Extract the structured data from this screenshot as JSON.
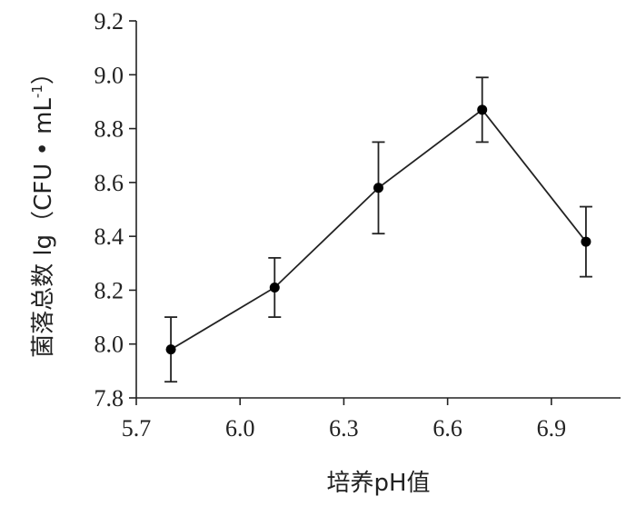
{
  "chart_data": {
    "type": "line",
    "xlabel": "培养pH值",
    "ylabel": "菌落总数 lg（CFU • mL",
    "ylabel_sup": "-1",
    "ylabel_close": "）",
    "xlim": [
      5.7,
      7.1
    ],
    "ylim": [
      7.8,
      9.2
    ],
    "xticks": [
      "5.7",
      "6.0",
      "6.3",
      "6.6",
      "6.9"
    ],
    "yticks": [
      "7.8",
      "8.0",
      "8.2",
      "8.4",
      "8.6",
      "8.8",
      "9.0",
      "9.2"
    ],
    "grid": false,
    "series": [
      {
        "x": [
          5.8,
          6.1,
          6.4,
          6.7,
          7.0
        ],
        "y": [
          7.98,
          8.21,
          8.58,
          8.87,
          8.38
        ],
        "error": [
          0.12,
          0.11,
          0.17,
          0.12,
          0.13
        ]
      }
    ]
  }
}
